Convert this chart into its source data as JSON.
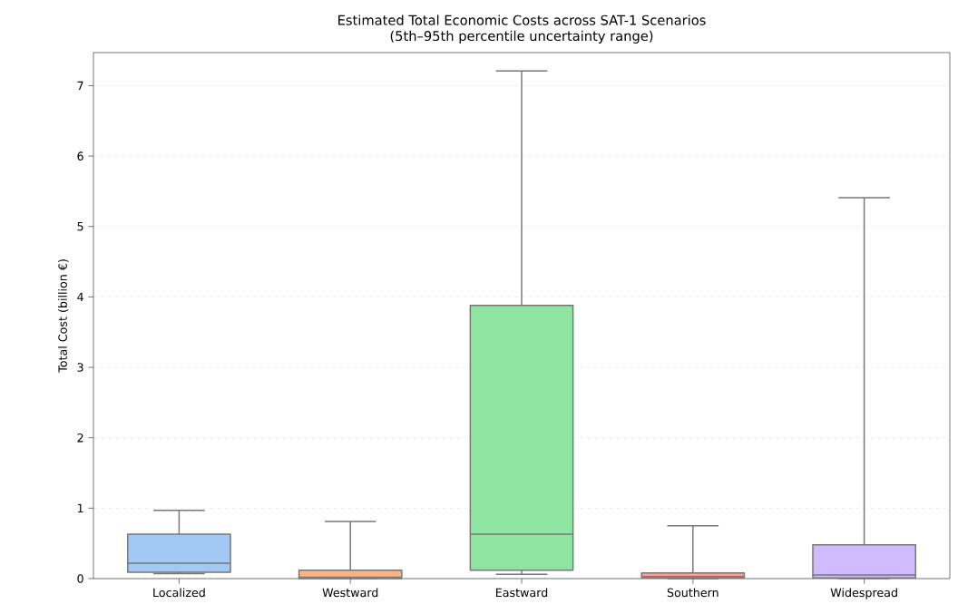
{
  "chart_data": {
    "type": "box",
    "title": "Estimated Total Economic Costs across SAT-1 Scenarios",
    "subtitle": "(5th–95th percentile uncertainty range)",
    "ylabel": "Total Cost (billion €)",
    "categories": [
      "Localized",
      "Westward",
      "Eastward",
      "Southern",
      "Widespread"
    ],
    "colors": [
      "#a1c9f4",
      "#ffb482",
      "#8de5a1",
      "#ff9f9b",
      "#d0bbff"
    ],
    "boxes": [
      {
        "low": 0.07,
        "q1": 0.09,
        "median": 0.22,
        "q3": 0.63,
        "high": 0.97
      },
      {
        "low": 0,
        "q1": 0,
        "median": 0.02,
        "q3": 0.12,
        "high": 0.81
      },
      {
        "low": 0.06,
        "q1": 0.12,
        "median": 0.63,
        "q3": 3.88,
        "high": 7.21
      },
      {
        "low": 0,
        "q1": 0.01,
        "median": 0.03,
        "q3": 0.08,
        "high": 0.75
      },
      {
        "low": 0,
        "q1": 0.01,
        "median": 0.05,
        "q3": 0.48,
        "high": 5.41
      }
    ],
    "ylim": [
      0,
      7.47
    ],
    "yticks": [
      0,
      1,
      2,
      3,
      4,
      5,
      6,
      7
    ],
    "grid": "y"
  }
}
